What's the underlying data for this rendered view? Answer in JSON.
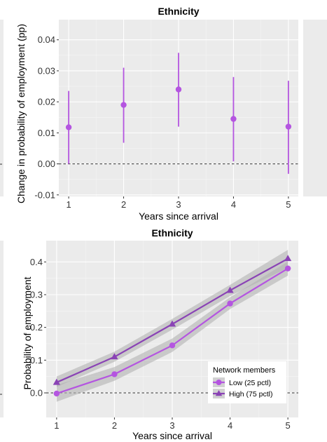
{
  "colors": {
    "panel_bg": "#ebebeb",
    "grid_major": "#ffffff",
    "grid_minor": "#f5f5f5",
    "low_series": "#b455e0",
    "high_series": "#8a43b5",
    "errorbar": "#b455e0",
    "ribbon": "#b3b3b3",
    "zero_line": "#333333"
  },
  "chart_data": [
    {
      "type": "scatter",
      "title": "Ethnicity",
      "xlabel": "Years since arrival",
      "ylabel": "Change in probability of employment (pp)",
      "x": [
        1,
        2,
        3,
        4,
        5
      ],
      "y": [
        0.0118,
        0.019,
        0.024,
        0.0145,
        0.012
      ],
      "y_lower": [
        0.0,
        0.0068,
        0.012,
        0.0008,
        -0.0032
      ],
      "y_upper": [
        0.0235,
        0.031,
        0.0358,
        0.028,
        0.0268
      ],
      "xticks": [
        "1",
        "2",
        "3",
        "4",
        "5"
      ],
      "yticks": [
        "-0.01",
        "0.00",
        "0.01",
        "0.02",
        "0.03",
        "0.04"
      ],
      "ytick_values": [
        -0.01,
        0,
        0.01,
        0.02,
        0.03,
        0.04
      ],
      "xlim": [
        0.82,
        5.18
      ],
      "ylim": [
        -0.0105,
        0.0465
      ],
      "reference_line": 0,
      "grid": true
    },
    {
      "type": "line",
      "title": "Ethnicity",
      "xlabel": "Years since arrival",
      "ylabel": "Probability of employment",
      "x": [
        1,
        2,
        3,
        4,
        5
      ],
      "xticks": [
        "1",
        "2",
        "3",
        "4",
        "5"
      ],
      "yticks": [
        "0.0",
        "0.1",
        "0.2",
        "0.3",
        "0.4"
      ],
      "ytick_values": [
        0,
        0.1,
        0.2,
        0.3,
        0.4
      ],
      "xlim": [
        0.82,
        5.18
      ],
      "ylim": [
        -0.075,
        0.465
      ],
      "reference_line": 0,
      "grid": true,
      "legend_title": "Network members",
      "legend_position": "bottom-right",
      "series": [
        {
          "name": "Low (25 pctl)",
          "marker": "circle",
          "values": [
            -0.002,
            0.057,
            0.145,
            0.273,
            0.38
          ],
          "lower": [
            -0.027,
            0.037,
            0.125,
            0.256,
            0.358
          ],
          "upper": [
            0.024,
            0.079,
            0.166,
            0.292,
            0.401
          ]
        },
        {
          "name": "High (75 pctl)",
          "marker": "triangle",
          "values": [
            0.032,
            0.11,
            0.21,
            0.313,
            0.41
          ],
          "lower": [
            0.018,
            0.095,
            0.193,
            0.296,
            0.382
          ],
          "upper": [
            0.05,
            0.126,
            0.226,
            0.33,
            0.437
          ]
        }
      ]
    }
  ]
}
